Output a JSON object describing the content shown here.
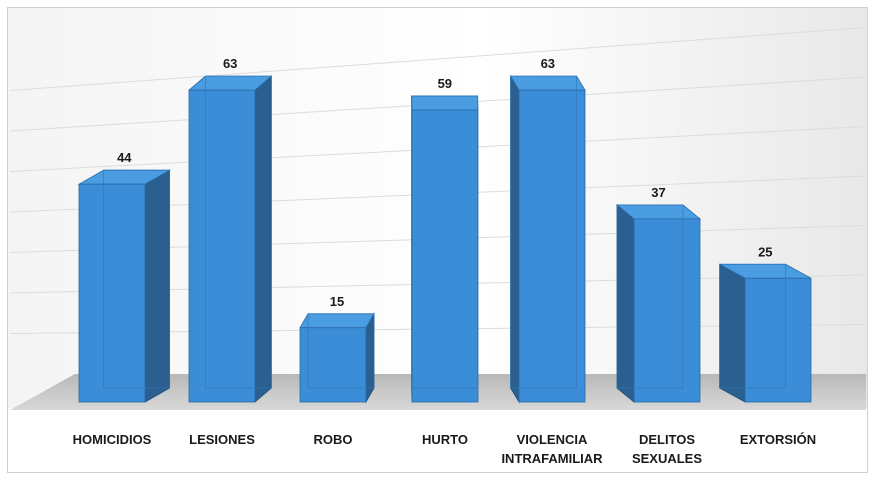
{
  "chart_data": {
    "type": "bar",
    "title": "",
    "xlabel": "",
    "ylabel": "",
    "ylim": [
      0,
      70
    ],
    "grid": true,
    "style": "3d",
    "bar_color": "#3a8dd6",
    "categories": [
      [
        "HOMICIDIOS"
      ],
      [
        "LESIONES"
      ],
      [
        "ROBO"
      ],
      [
        "HURTO"
      ],
      [
        "VIOLENCIA",
        "INTRAFAMILIAR"
      ],
      [
        "DELITOS",
        "SEXUALES"
      ],
      [
        "EXTORSIÓN"
      ]
    ],
    "values": [
      44,
      63,
      15,
      59,
      63,
      37,
      25
    ]
  }
}
